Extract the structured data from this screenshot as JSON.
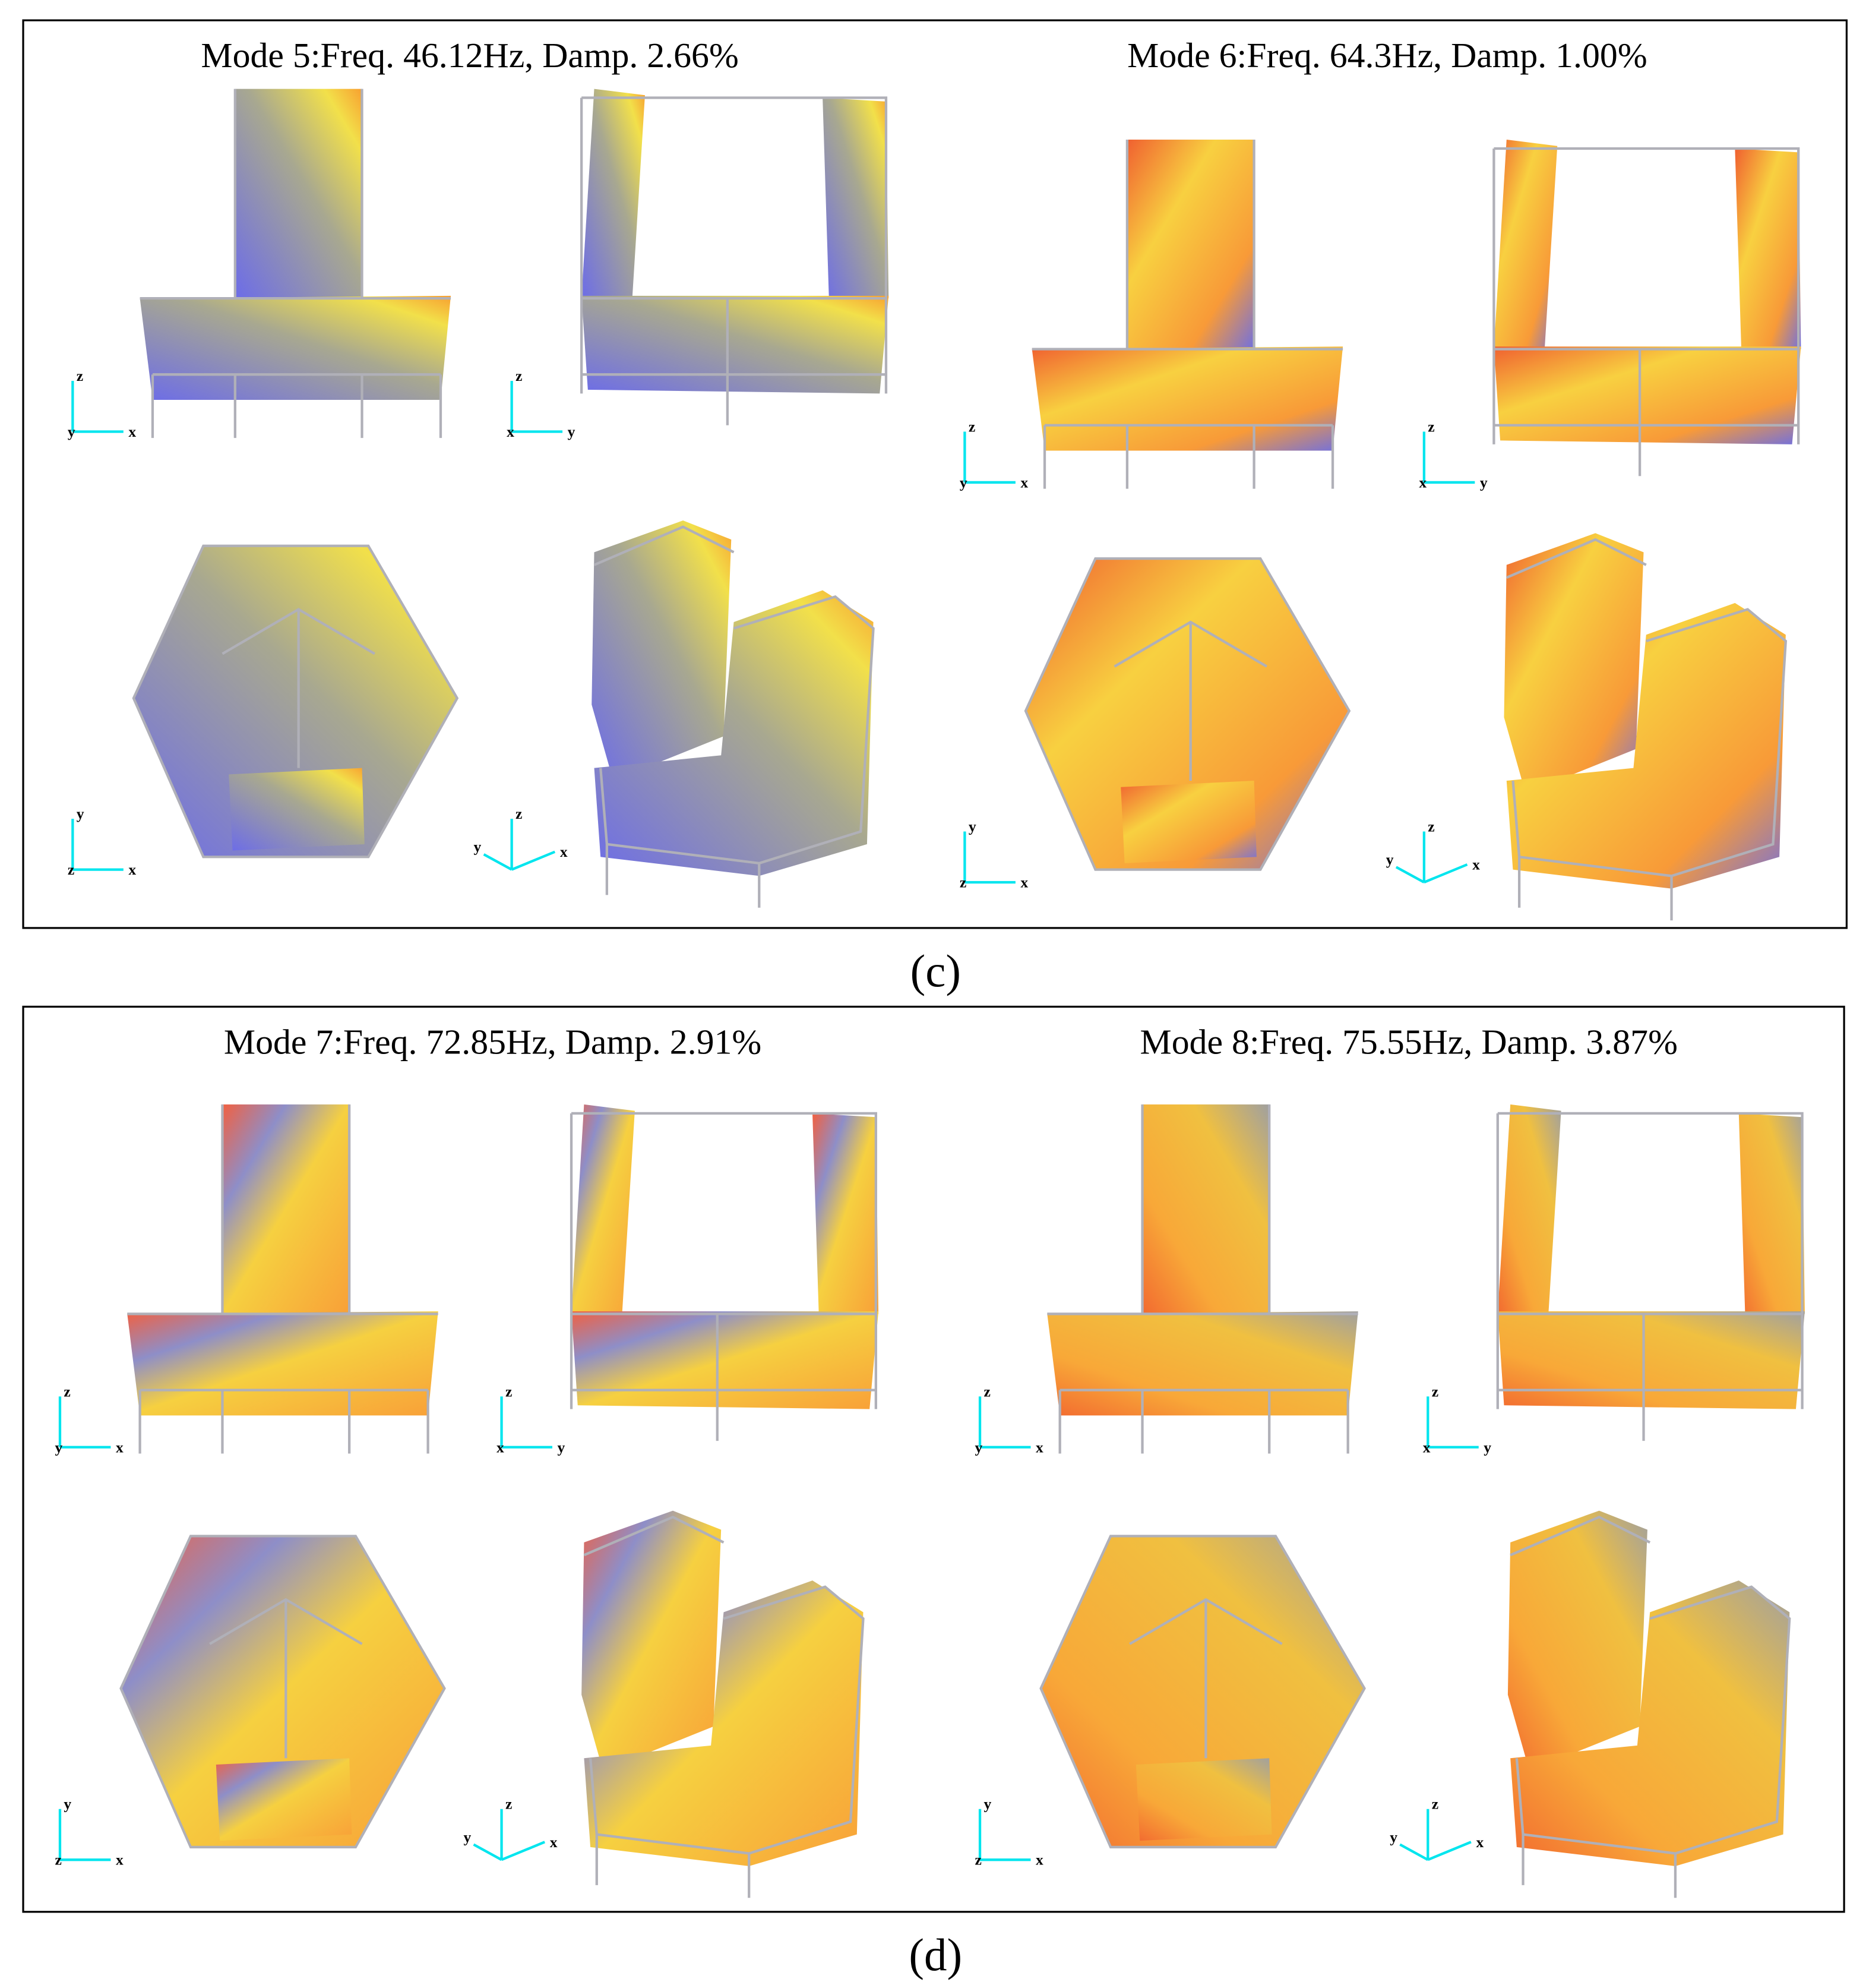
{
  "panels": [
    {
      "caption": "(c)",
      "modes": [
        {
          "title": "Mode 5:Freq. 46.12Hz, Damp. 2.66%",
          "views": [
            {
              "axes": [
                "z",
                "y",
                "x"
              ]
            },
            {
              "axes": [
                "z",
                "x",
                "y"
              ]
            },
            {
              "axes": [
                "y",
                "z",
                "x"
              ]
            },
            {
              "axes": [
                "z",
                "y",
                "x"
              ]
            }
          ]
        },
        {
          "title": "Mode 6:Freq. 64.3Hz, Damp. 1.00%",
          "views": [
            {
              "axes": [
                "z",
                "y",
                "x"
              ]
            },
            {
              "axes": [
                "z",
                "x",
                "y"
              ]
            },
            {
              "axes": [
                "y",
                "z",
                "x"
              ]
            },
            {
              "axes": [
                "z",
                "y",
                "x"
              ]
            }
          ]
        }
      ]
    },
    {
      "caption": "(d)",
      "modes": [
        {
          "title": "Mode 7:Freq. 72.85Hz, Damp. 2.91%",
          "views": [
            {
              "axes": [
                "z",
                "y",
                "x"
              ]
            },
            {
              "axes": [
                "z",
                "x",
                "y"
              ]
            },
            {
              "axes": [
                "y",
                "z",
                "x"
              ]
            },
            {
              "axes": [
                "z",
                "y",
                "x"
              ]
            }
          ]
        },
        {
          "title": "Mode 8:Freq. 75.55Hz, Damp. 3.87%",
          "views": [
            {
              "axes": [
                "z",
                "y",
                "x"
              ]
            },
            {
              "axes": [
                "z",
                "x",
                "y"
              ]
            },
            {
              "axes": [
                "y",
                "z",
                "x"
              ]
            },
            {
              "axes": [
                "z",
                "y",
                "x"
              ]
            }
          ]
        }
      ]
    }
  ]
}
